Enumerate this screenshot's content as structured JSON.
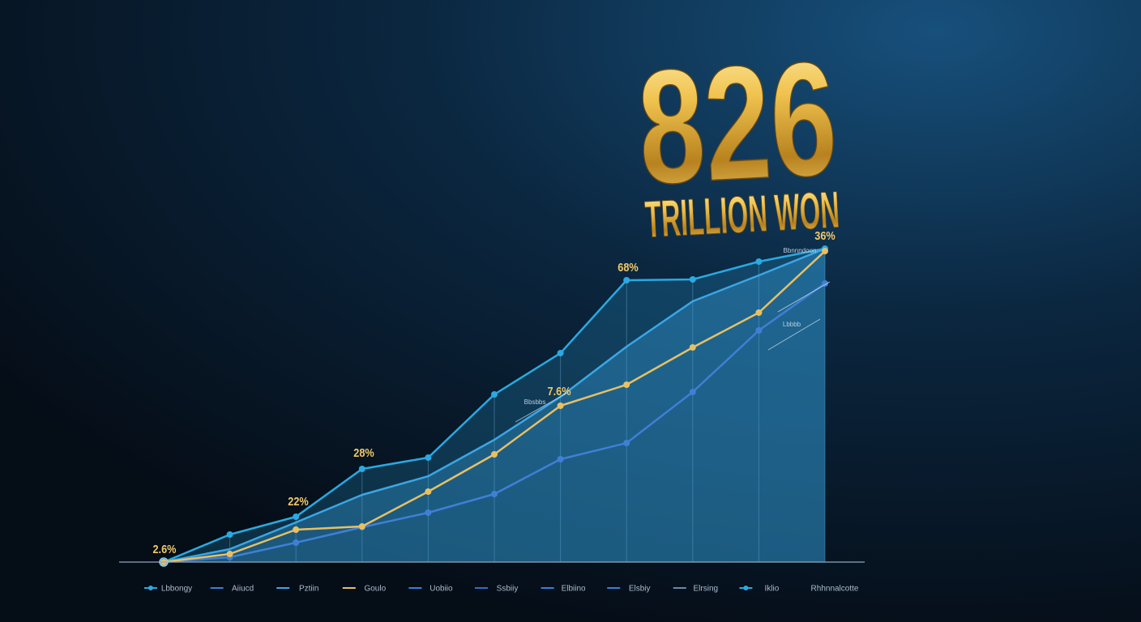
{
  "chart_data": {
    "type": "line",
    "headline": 826,
    "headline_unit": "TRILLION WON",
    "categories": [
      "Lbbongy",
      "Aiiucd",
      "Pztiin",
      "Goulo",
      "Uobiio",
      "Ssbiiy",
      "Elbiino",
      "Elsbiy",
      "Elrsing",
      "Iklio",
      "Rhhnnalcotte"
    ],
    "ylim": [
      0,
      100
    ],
    "grid": true,
    "series": [
      {
        "color": "#2aa9e2",
        "markers": true,
        "area": true,
        "values": [
          0,
          8.5,
          14,
          28.75,
          32.25,
          51.75,
          64.5,
          87,
          87.25,
          92.75,
          96.75
        ]
      },
      {
        "color": "#3aa6e6",
        "markers": false,
        "area": true,
        "values": [
          0,
          4,
          12.25,
          20.75,
          26.5,
          37.75,
          51,
          66.5,
          80.5,
          88.5,
          96.75
        ]
      },
      {
        "color": "#e8c062",
        "markers": true,
        "area": false,
        "values": [
          0,
          2.5,
          10,
          11,
          21.75,
          33.25,
          48.25,
          54.75,
          66.25,
          77,
          96
        ]
      },
      {
        "color": "#3f7fd6",
        "markers": true,
        "area": true,
        "values": [
          0,
          1.5,
          6,
          10.75,
          15.25,
          21,
          31.75,
          36.75,
          52.5,
          71.5,
          86
        ]
      }
    ],
    "annotations": [
      "2.6%",
      "22%",
      "28%",
      "7.6%",
      "68%",
      "36%"
    ],
    "notes": [
      "Bbnnndoon",
      "Lbbbb",
      "Bbsbbs"
    ]
  }
}
